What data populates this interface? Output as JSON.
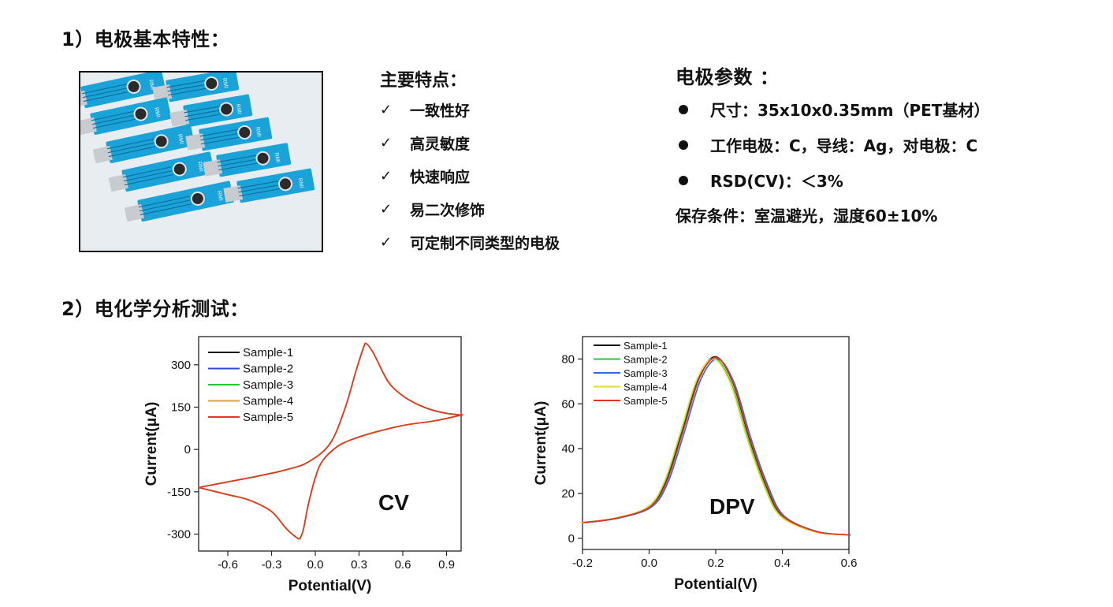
{
  "section1": {
    "heading": "1）电极基本特性：",
    "features_title": "主要特点：",
    "check_mark": "✓",
    "features": [
      "一致性好",
      "高灵敏度",
      "快速响应",
      "易二次修饰",
      "可定制不同类型的电极"
    ],
    "params_title": "电极参数 ：",
    "params": [
      "尺寸：35x10x0.35mm（PET基材）",
      "工作电极：C，导线：Ag，对电极：C",
      "RSD(CV)：＜3%"
    ],
    "storage": "保存条件：室温避光，湿度60±10%",
    "photo_label": "RMI"
  },
  "section2": {
    "heading": "2）电化学分析测试："
  },
  "chart_data": [
    {
      "type": "line",
      "title": "",
      "annotation": "CV",
      "xlabel": "Potential(V)",
      "ylabel": "Current(μA)",
      "xlim": [
        -0.8,
        1.0
      ],
      "ylim": [
        -360,
        400
      ],
      "xticks": [
        "-0.6",
        "-0.3",
        "0.0",
        "0.3",
        "0.6",
        "0.9"
      ],
      "yticks": [
        "300",
        "150",
        "0",
        "-150",
        "-300"
      ],
      "legend": [
        "Sample-1",
        "Sample-2",
        "Sample-3",
        "Sample-4",
        "Sample-5"
      ],
      "legend_position": "top-left",
      "series_colors": [
        "#111111",
        "#2b4be0",
        "#26c934",
        "#d6a23a",
        "#e8341c"
      ],
      "forward_scan": {
        "x": [
          -0.8,
          -0.6,
          -0.4,
          -0.2,
          -0.05,
          0.1,
          0.2,
          0.28,
          0.33,
          0.35,
          0.4,
          0.5,
          0.6,
          0.7,
          0.8,
          0.9,
          0.95,
          1.0
        ],
        "y": [
          -135,
          -115,
          -95,
          -72,
          -45,
          20,
          140,
          280,
          360,
          375,
          340,
          240,
          190,
          160,
          140,
          128,
          125,
          122
        ]
      },
      "reverse_scan": {
        "x": [
          1.0,
          0.9,
          0.8,
          0.6,
          0.4,
          0.25,
          0.15,
          0.05,
          0.0,
          -0.05,
          -0.08,
          -0.1,
          -0.12,
          -0.2,
          -0.3,
          -0.45,
          -0.6,
          -0.8
        ],
        "y": [
          122,
          110,
          100,
          85,
          60,
          35,
          10,
          -40,
          -100,
          -200,
          -280,
          -310,
          -315,
          -280,
          -220,
          -180,
          -160,
          -135
        ]
      }
    },
    {
      "type": "line",
      "title": "",
      "annotation": "DPV",
      "xlabel": "Potential(V)",
      "ylabel": "Current(μA)",
      "xlim": [
        -0.2,
        0.6
      ],
      "ylim": [
        -5,
        90
      ],
      "xticks": [
        "-0.2",
        "0.0",
        "0.2",
        "0.4",
        "0.6"
      ],
      "yticks": [
        "80",
        "60",
        "40",
        "20",
        "0"
      ],
      "legend": [
        "Sample-1",
        "Sample-2",
        "Sample-3",
        "Sample-4",
        "Sample-5"
      ],
      "legend_position": "top-left",
      "series_colors": [
        "#111111",
        "#26c934",
        "#2b6be0",
        "#e6d93a",
        "#e8341c"
      ],
      "x": [
        -0.2,
        -0.1,
        0.0,
        0.05,
        0.1,
        0.15,
        0.2,
        0.25,
        0.3,
        0.35,
        0.4,
        0.5,
        0.6
      ],
      "y": [
        7,
        9,
        14,
        25,
        48,
        72,
        81,
        70,
        45,
        24,
        10,
        3,
        1.5
      ]
    }
  ]
}
